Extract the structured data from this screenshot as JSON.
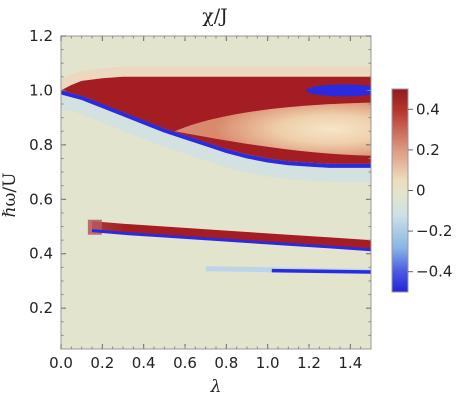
{
  "chart_data": {
    "type": "heatmap",
    "title": "χ/J",
    "xlabel": "λ",
    "ylabel": "ℏω/U",
    "xlim": [
      0.0,
      1.5
    ],
    "ylim": [
      0.05,
      1.2
    ],
    "x_ticks": [
      "0.0",
      "0.2",
      "0.4",
      "0.6",
      "0.8",
      "1.0",
      "1.2",
      "1.4"
    ],
    "y_ticks": [
      "0.2",
      "0.4",
      "0.6",
      "0.8",
      "1.0",
      "1.2"
    ],
    "colorbar": {
      "range": [
        -0.5,
        0.5
      ],
      "tick_labels": [
        "0.4",
        "0.2",
        "0",
        "−0.2",
        "−0.4"
      ],
      "colors": {
        "neg_max": "#2b2bde",
        "neg_mid": "#9ec7e6",
        "zero": "#e3e4cd",
        "pos_mid": "#ebc7a5",
        "pos_max": "#a31d22"
      }
    },
    "branches": [
      {
        "name": "upper band top edge",
        "x": [
          0.0,
          0.05,
          0.1,
          0.2,
          0.3,
          0.4,
          0.6,
          0.8,
          1.0,
          1.2,
          1.5
        ],
        "y": [
          1.0,
          1.02,
          1.035,
          1.045,
          1.05,
          1.05,
          1.05,
          1.05,
          1.05,
          1.05,
          1.05
        ]
      },
      {
        "name": "upper band lower edge (blue)",
        "x": [
          0.0,
          0.1,
          0.2,
          0.3,
          0.4,
          0.5,
          0.6,
          0.7,
          0.8,
          0.9,
          1.0,
          1.1,
          1.2,
          1.3,
          1.4,
          1.5
        ],
        "y": [
          1.0,
          0.98,
          0.95,
          0.92,
          0.89,
          0.86,
          0.835,
          0.81,
          0.785,
          0.765,
          0.75,
          0.74,
          0.735,
          0.73,
          0.73,
          0.73
        ]
      },
      {
        "name": "middle band (blue lower edge)",
        "x": [
          0.15,
          0.3,
          0.5,
          0.7,
          0.9,
          1.1,
          1.3,
          1.5
        ],
        "y": [
          0.5,
          0.49,
          0.48,
          0.47,
          0.46,
          0.45,
          0.44,
          0.43
        ]
      },
      {
        "name": "lower blue streak",
        "x": [
          0.7,
          0.9,
          1.1,
          1.3,
          1.5
        ],
        "y": [
          0.345,
          0.343,
          0.34,
          0.337,
          0.335
        ]
      }
    ]
  }
}
